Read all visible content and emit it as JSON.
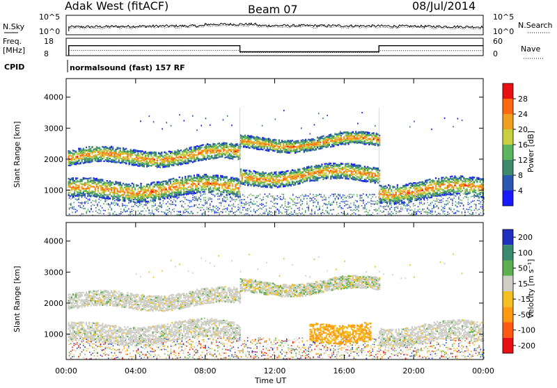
{
  "header": {
    "station": "Adak West (fitACF)",
    "beam": "Beam 07",
    "date": "08/Jul/2014"
  },
  "noise_panel": {
    "left_label": "N.Sky",
    "right_label": "N.Search",
    "left_ticks": [
      "10^5",
      "10^0"
    ],
    "right_ticks": [
      "10^5",
      "10^0"
    ]
  },
  "freq_panel": {
    "left_label_1": "Freq.",
    "left_label_2": "[MHz]",
    "right_label": "Nave",
    "left_ticks": [
      "18",
      "8"
    ],
    "right_ticks": [
      "60",
      "0"
    ],
    "freq_steps": [
      {
        "from_hour": 0.15,
        "to_hour": 10.0,
        "value": 14.5
      },
      {
        "from_hour": 10.0,
        "to_hour": 18.0,
        "value": 10.5
      },
      {
        "from_hour": 18.0,
        "to_hour": 24.0,
        "value": 14.5
      }
    ],
    "nave_steps": [
      {
        "from_hour": 0.15,
        "to_hour": 10.0,
        "value": 18
      },
      {
        "from_hour": 10.0,
        "to_hour": 18.0,
        "value": 10
      },
      {
        "from_hour": 18.0,
        "to_hour": 24.0,
        "value": 17
      }
    ]
  },
  "cpid": {
    "label": "CPID",
    "text": "normalsound (fast) 157 RF"
  },
  "chart_data": [
    {
      "type": "heatmap",
      "title": "",
      "xlabel": "",
      "ylabel": "Slant Range [km]",
      "xlim": [
        0,
        24
      ],
      "ylim": [
        180,
        4600
      ],
      "y_ticks": [
        "1000",
        "2000",
        "3000",
        "4000"
      ],
      "colorbar": {
        "label": "Power [dB]",
        "ticks": [
          "4",
          "8",
          "12",
          "16",
          "20",
          "24",
          "28"
        ],
        "colors": [
          "#1a1aff",
          "#2a58b0",
          "#3e8a6a",
          "#5db55d",
          "#c8d040",
          "#f0a020",
          "#ff6a10",
          "#e81010"
        ]
      },
      "bands": [
        {
          "range_km": [
            1800,
            2300
          ],
          "hours": [
            0.1,
            10.0
          ],
          "level": "20-24 dB"
        },
        {
          "range_km": [
            700,
            1300
          ],
          "hours": [
            0.1,
            10.0
          ],
          "level": "16-24 dB"
        },
        {
          "range_km": [
            2300,
            2700
          ],
          "hours": [
            10.0,
            18.0
          ],
          "level": "20-28 dB"
        },
        {
          "range_km": [
            1200,
            1700
          ],
          "hours": [
            10.0,
            18.0
          ],
          "level": "16-24 dB"
        },
        {
          "range_km": [
            700,
            1300
          ],
          "hours": [
            18.0,
            24.0
          ],
          "level": "16-28 dB"
        }
      ]
    },
    {
      "type": "heatmap",
      "title": "",
      "xlabel": "Time UT",
      "ylabel": "Slant Range [km]",
      "xlim": [
        0,
        24
      ],
      "ylim": [
        180,
        4600
      ],
      "x_ticks": [
        "00:00",
        "04:00",
        "08:00",
        "12:00",
        "16:00",
        "20:00",
        "00:00"
      ],
      "y_ticks": [
        "1000",
        "2000",
        "3000",
        "4000"
      ],
      "colorbar": {
        "label": "Velocity [m s⁻¹]",
        "ticks": [
          "200",
          "100",
          "50",
          "15",
          "-15",
          "-50",
          "-100",
          "-200"
        ],
        "colors": [
          "#2030c0",
          "#3a8a70",
          "#5cb050",
          "#cfcfc7",
          "#f2c020",
          "#ff9a10",
          "#ff5a10",
          "#e81010"
        ]
      },
      "bands": [
        {
          "range_km": [
            1800,
            2300
          ],
          "hours": [
            0.1,
            10.0
          ],
          "velocity": "-15 to 15"
        },
        {
          "range_km": [
            700,
            1300
          ],
          "hours": [
            0.1,
            10.0
          ],
          "velocity": "-15 to 15"
        },
        {
          "range_km": [
            2300,
            2700
          ],
          "hours": [
            10.0,
            18.0
          ],
          "velocity": "-50 to 15"
        },
        {
          "range_km": [
            800,
            1400
          ],
          "hours": [
            14.0,
            17.5
          ],
          "velocity": "-50 to -100"
        },
        {
          "range_km": [
            700,
            1300
          ],
          "hours": [
            18.0,
            24.0
          ],
          "velocity": "-15 to 15"
        }
      ]
    }
  ]
}
